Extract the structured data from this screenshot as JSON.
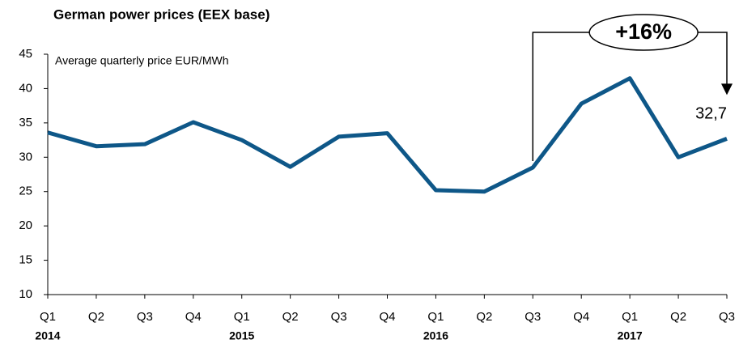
{
  "chart_data": {
    "type": "line",
    "title": "German power prices (EEX base)",
    "subtitle": "Average quarterly price EUR/MWh",
    "categories": [
      "Q1",
      "Q2",
      "Q3",
      "Q4",
      "Q1",
      "Q2",
      "Q3",
      "Q4",
      "Q1",
      "Q2",
      "Q3",
      "Q4",
      "Q1",
      "Q2",
      "Q3"
    ],
    "years": [
      "2014",
      null,
      null,
      null,
      "2015",
      null,
      null,
      null,
      "2016",
      null,
      null,
      null,
      "2017",
      null,
      null
    ],
    "series": [
      {
        "name": "Average quarterly price EUR/MWh",
        "color": "#0e5788",
        "values": [
          33.6,
          31.6,
          31.9,
          35.1,
          32.5,
          28.6,
          33.0,
          33.5,
          25.2,
          25.0,
          28.5,
          37.8,
          41.5,
          30.0,
          32.7
        ],
        "value_labels": [
          null,
          null,
          null,
          null,
          null,
          null,
          null,
          null,
          null,
          null,
          null,
          null,
          null,
          null,
          "32,7"
        ]
      }
    ],
    "ylim": [
      10,
      45
    ],
    "yticks": [
      10,
      15,
      20,
      25,
      30,
      35,
      40,
      45
    ],
    "annotation": "+16%"
  }
}
